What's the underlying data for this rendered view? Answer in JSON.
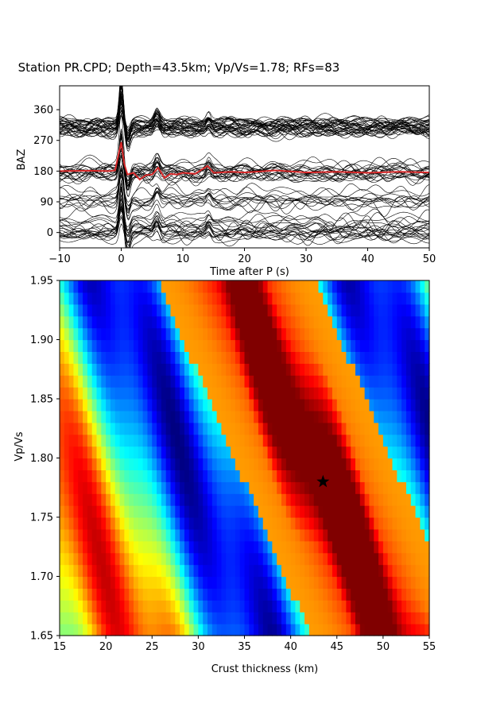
{
  "figure": {
    "title": "Station PR.CPD; Depth=43.5km; Vp/Vs=1.78; RFs=83"
  },
  "chart_data": [
    {
      "type": "line",
      "panel": "receiver-functions",
      "xlabel": "Time after P (s)",
      "ylabel": "BAZ",
      "xlim": [
        -10,
        50
      ],
      "ylim": [
        -45,
        430
      ],
      "xticks": [
        -10,
        0,
        10,
        20,
        30,
        40,
        50
      ],
      "yticks": [
        0,
        90,
        180,
        270,
        360
      ],
      "trace_count": 83,
      "trace_color": "#000000",
      "stack_color": "#d62728",
      "stack_series": {
        "name": "stack",
        "baz_offset": 180,
        "x": [
          -10,
          -5,
          -2,
          -1,
          0,
          0.5,
          1,
          2,
          3,
          4,
          5,
          6,
          7,
          8,
          9,
          10,
          12,
          14,
          15,
          18,
          20,
          25,
          30,
          35,
          40,
          45,
          50
        ],
        "y": [
          180,
          181,
          180,
          182,
          265,
          200,
          170,
          175,
          155,
          168,
          170,
          190,
          160,
          172,
          170,
          175,
          172,
          195,
          175,
          178,
          176,
          182,
          176,
          178,
          175,
          178,
          176
        ]
      },
      "main_pulse_peak_baz": 420,
      "main_pulse_trough_baz": -25
    },
    {
      "type": "heatmap",
      "panel": "h-kappa-stack",
      "xlabel": "Crust thickness (km)",
      "ylabel": "Vp/Vs",
      "xlim": [
        15,
        55
      ],
      "ylim": [
        1.65,
        1.95
      ],
      "xticks": [
        15,
        20,
        25,
        30,
        35,
        40,
        45,
        50,
        55
      ],
      "yticks": [
        1.65,
        1.7,
        1.75,
        1.8,
        1.85,
        1.9,
        1.95
      ],
      "colormap": "jet",
      "grid_columns": 80,
      "grid_rows": 30,
      "max_point": {
        "h": 43.5,
        "vpvs": 1.78,
        "marker": "star",
        "color": "#000000"
      }
    }
  ]
}
